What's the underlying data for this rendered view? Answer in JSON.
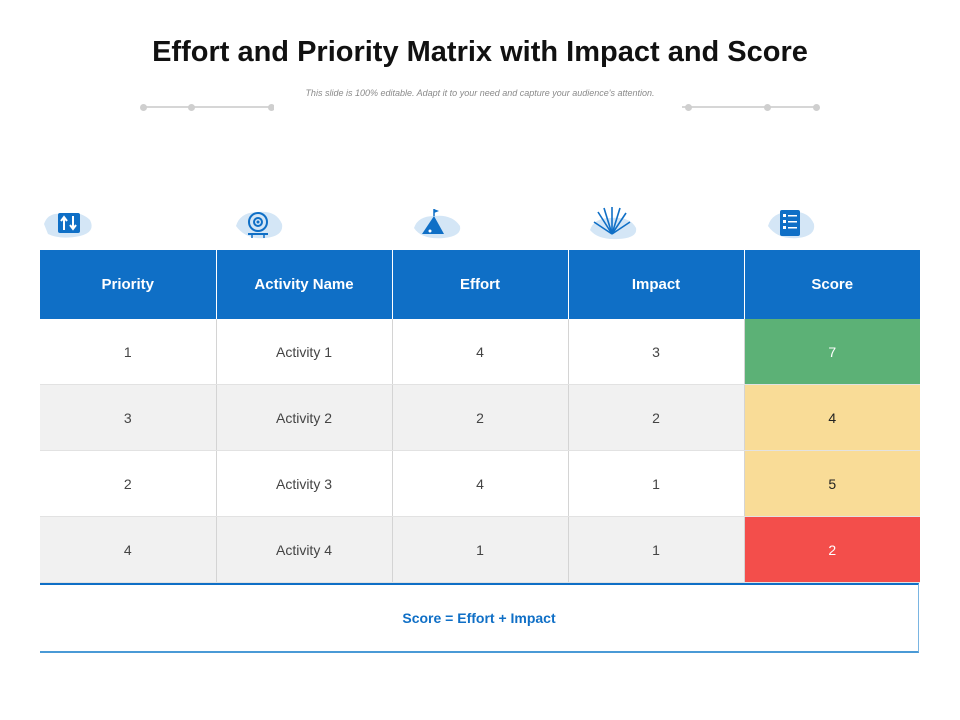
{
  "title": "Effort and Priority Matrix with Impact and Score",
  "subtitle": "This slide is 100% editable. Adapt it to your need and capture your audience's attention.",
  "icons": [
    "up-down-arrows-icon",
    "target-gear-icon",
    "mountain-flag-icon",
    "burst-lines-icon",
    "checklist-icon"
  ],
  "table": {
    "headers": [
      "Priority",
      "Activity Name",
      "Effort",
      "Impact",
      "Score"
    ],
    "rows": [
      {
        "priority": "1",
        "activity": "Activity 1",
        "effort": "4",
        "impact": "3",
        "score": "7",
        "score_color": "#5cb176"
      },
      {
        "priority": "3",
        "activity": "Activity 2",
        "effort": "2",
        "impact": "2",
        "score": "4",
        "score_color": "#f9dc97"
      },
      {
        "priority": "2",
        "activity": "Activity  3",
        "effort": "4",
        "impact": "1",
        "score": "5",
        "score_color": "#f9dc97"
      },
      {
        "priority": "4",
        "activity": "Activity  4",
        "effort": "1",
        "impact": "1",
        "score": "2",
        "score_color": "#f34e4b"
      }
    ]
  },
  "formula": "Score = Effort + Impact",
  "colors": {
    "header_blue": "#0f6fc6",
    "accent_light": "#d4e6f6"
  }
}
